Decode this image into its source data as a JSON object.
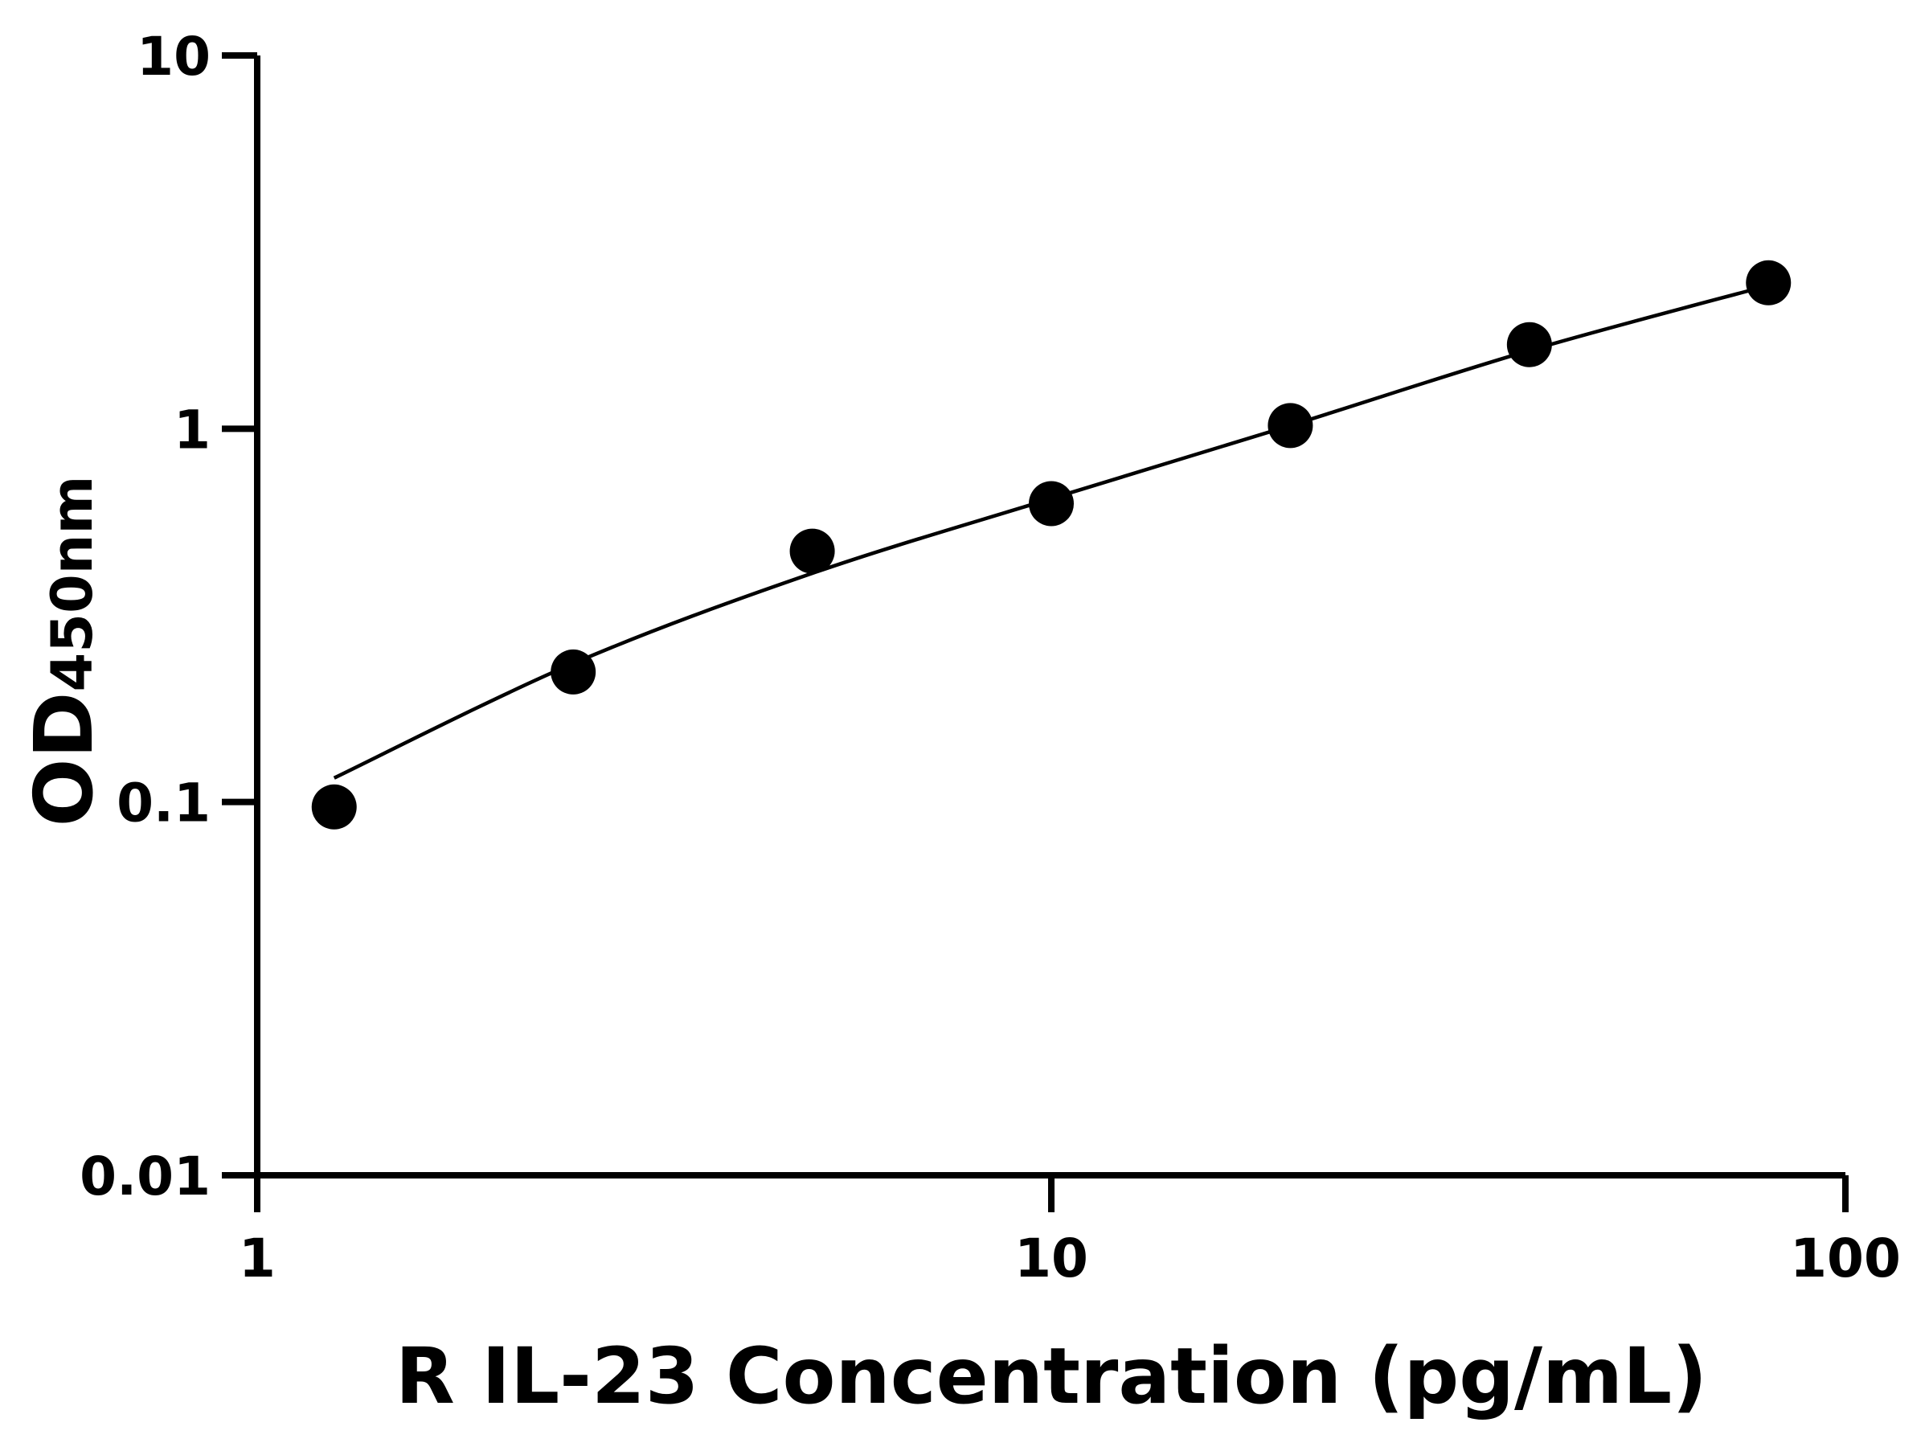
{
  "chart_data": {
    "type": "scatter",
    "title": "",
    "xlabel": "R IL-23 Concentration (pg/mL)",
    "ylabel_main": "OD",
    "ylabel_sub": "450nm",
    "x_scale": "log",
    "y_scale": "log",
    "xlim": [
      1,
      100
    ],
    "ylim": [
      0.01,
      10
    ],
    "x_ticks": [
      {
        "v": 1,
        "label": "1"
      },
      {
        "v": 10,
        "label": "10"
      },
      {
        "v": 100,
        "label": "100"
      }
    ],
    "y_ticks": [
      {
        "v": 0.01,
        "label": "0.01"
      },
      {
        "v": 0.1,
        "label": "0.1"
      },
      {
        "v": 1,
        "label": "1"
      },
      {
        "v": 10,
        "label": "10"
      }
    ],
    "grid": false,
    "points": [
      {
        "x": 1.25,
        "y": 0.097
      },
      {
        "x": 2.5,
        "y": 0.223
      },
      {
        "x": 5,
        "y": 0.47
      },
      {
        "x": 10,
        "y": 0.63
      },
      {
        "x": 20,
        "y": 1.02
      },
      {
        "x": 40,
        "y": 1.68
      },
      {
        "x": 80,
        "y": 2.46
      }
    ],
    "fit_curve": [
      {
        "x": 1.25,
        "y": 0.116
      },
      {
        "x": 2.5,
        "y": 0.235
      },
      {
        "x": 5,
        "y": 0.41
      },
      {
        "x": 10,
        "y": 0.65
      },
      {
        "x": 20,
        "y": 1.02
      },
      {
        "x": 40,
        "y": 1.62
      },
      {
        "x": 80,
        "y": 2.42
      }
    ],
    "marker_color": "#000000",
    "line_color": "#000000"
  }
}
